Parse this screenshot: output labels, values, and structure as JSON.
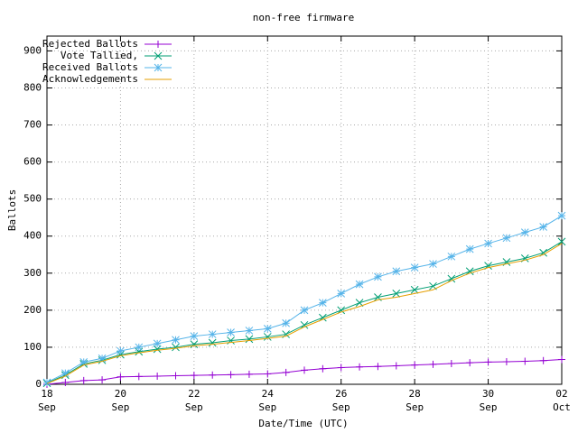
{
  "chart_data": {
    "type": "line",
    "title": "non-free firmware",
    "x_label": "Date/Time (UTC)",
    "y_label": "Ballots",
    "x": [
      "Sep 18 00:00",
      "Sep 18 12:00",
      "Sep 19 00:00",
      "Sep 19 12:00",
      "Sep 20 00:00",
      "Sep 20 12:00",
      "Sep 21 00:00",
      "Sep 21 12:00",
      "Sep 22 00:00",
      "Sep 22 12:00",
      "Sep 23 00:00",
      "Sep 23 12:00",
      "Sep 24 00:00",
      "Sep 24 12:00",
      "Sep 25 00:00",
      "Sep 25 12:00",
      "Sep 26 00:00",
      "Sep 26 12:00",
      "Sep 27 00:00",
      "Sep 27 12:00",
      "Sep 28 00:00",
      "Sep 28 12:00",
      "Sep 29 00:00",
      "Sep 29 12:00",
      "Sep 30 00:00",
      "Sep 30 12:00",
      "Oct 01 00:00",
      "Oct 01 12:00",
      "Oct 02 00:00"
    ],
    "series": [
      {
        "name": "Rejected Ballots",
        "color": "#9400d3",
        "marker": "plus",
        "values": [
          0,
          5,
          10,
          12,
          20,
          21,
          22,
          23,
          24,
          25,
          26,
          27,
          28,
          32,
          38,
          42,
          45,
          47,
          48,
          50,
          52,
          54,
          56,
          58,
          60,
          61,
          62,
          64,
          67
        ]
      },
      {
        "name": "Vote Tallied,",
        "color": "#009e73",
        "marker": "cross",
        "values": [
          3,
          25,
          55,
          65,
          80,
          88,
          95,
          100,
          108,
          112,
          118,
          122,
          128,
          135,
          160,
          180,
          200,
          220,
          235,
          245,
          255,
          265,
          285,
          305,
          320,
          330,
          340,
          355,
          385
        ]
      },
      {
        "name": "Received Ballots",
        "color": "#56b4e9",
        "marker": "star",
        "values": [
          5,
          30,
          60,
          70,
          90,
          100,
          110,
          120,
          130,
          135,
          140,
          145,
          150,
          165,
          200,
          220,
          245,
          270,
          290,
          305,
          315,
          325,
          345,
          365,
          380,
          395,
          410,
          425,
          455
        ]
      },
      {
        "name": "Acknowledgements",
        "color": "#e69f00",
        "marker": "none",
        "values": [
          2,
          22,
          52,
          62,
          77,
          85,
          92,
          97,
          104,
          108,
          113,
          118,
          124,
          130,
          155,
          175,
          195,
          210,
          228,
          235,
          245,
          255,
          280,
          300,
          315,
          325,
          335,
          350,
          380
        ]
      }
    ],
    "xlim": [
      "Sep 18",
      "Oct 02"
    ],
    "xticks": [
      {
        "value": "Sep 18",
        "label": "18\nSep"
      },
      {
        "value": "Sep 20",
        "label": "20\nSep"
      },
      {
        "value": "Sep 22",
        "label": "22\nSep"
      },
      {
        "value": "Sep 24",
        "label": "24\nSep"
      },
      {
        "value": "Sep 26",
        "label": "26\nSep"
      },
      {
        "value": "Sep 28",
        "label": "28\nSep"
      },
      {
        "value": "Sep 30",
        "label": "30\nSep"
      },
      {
        "value": "Oct 02",
        "label": "02\nOct"
      }
    ],
    "ylim": [
      0,
      940
    ],
    "yticks": [
      0,
      100,
      200,
      300,
      400,
      500,
      600,
      700,
      800,
      900
    ],
    "grid": true
  }
}
